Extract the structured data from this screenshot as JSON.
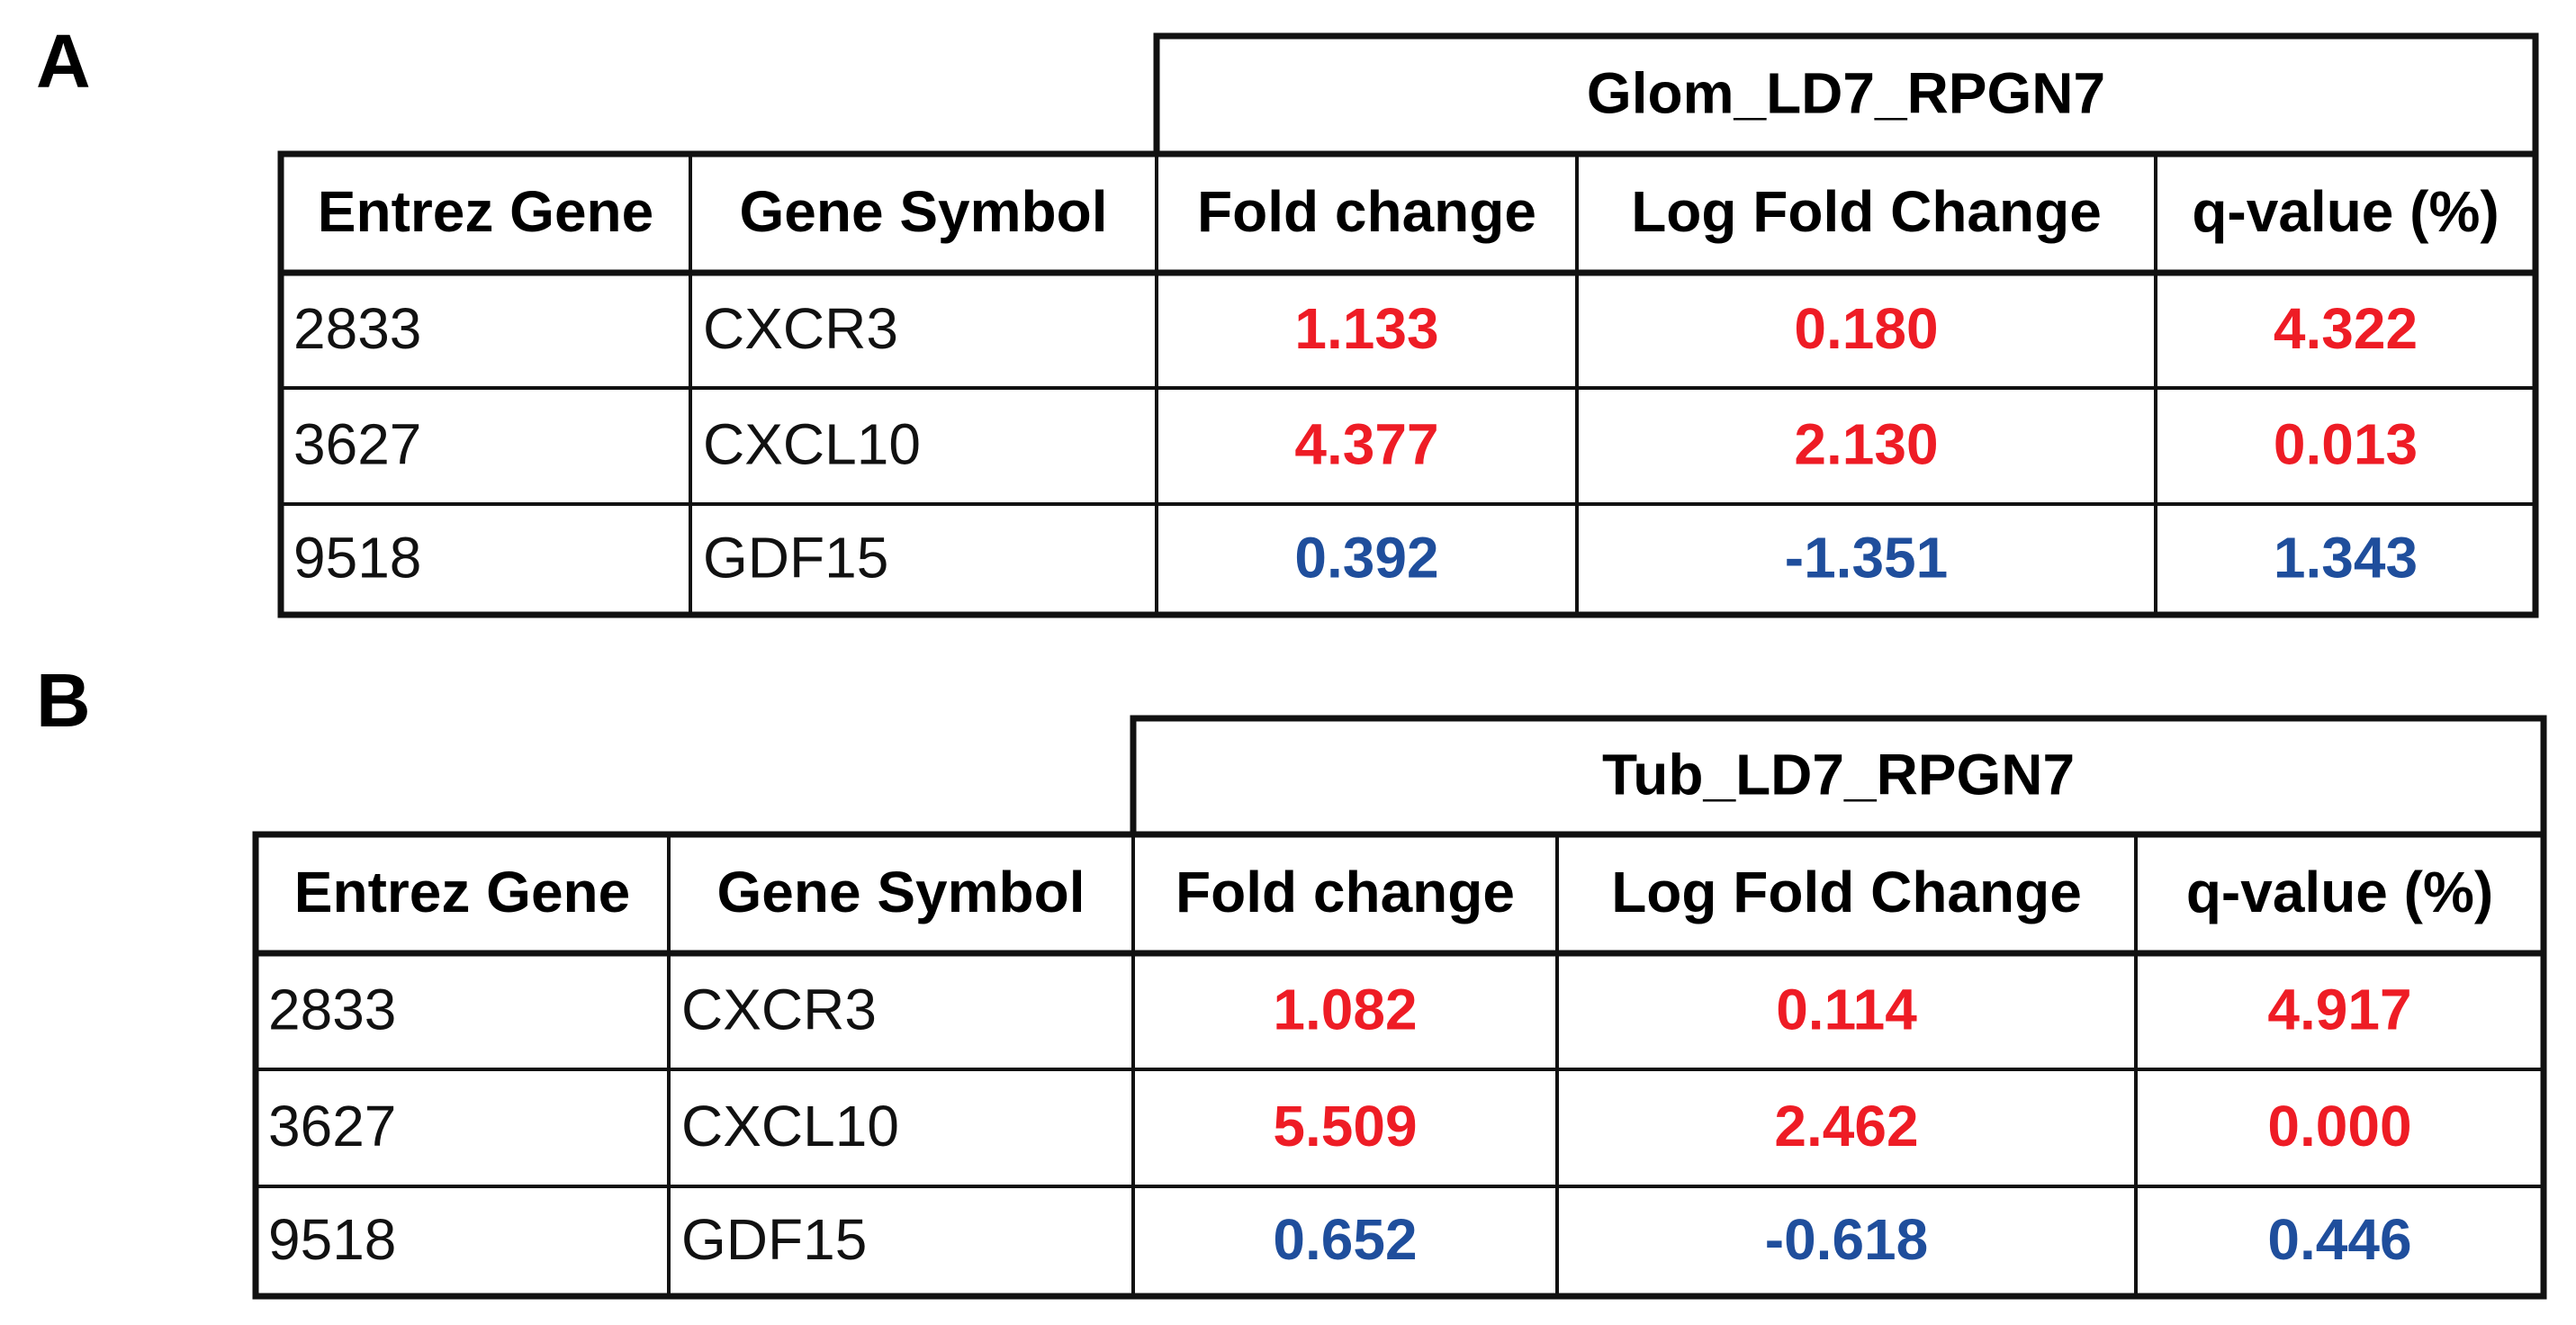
{
  "panels": [
    {
      "label": "A",
      "group_header": "Glom_LD7_RPGN7",
      "headers": [
        "Entrez Gene",
        "Gene Symbol",
        "Fold change",
        "Log Fold Change",
        "q-value (%)"
      ],
      "rows": [
        [
          "2833",
          "CXCR3",
          "1.133",
          "0.180",
          "4.322"
        ],
        [
          "3627",
          "CXCL10",
          "4.377",
          "2.130",
          "0.013"
        ],
        [
          "9518",
          "GDF15",
          "0.392",
          "-1.351",
          "1.343"
        ]
      ],
      "row_colors": [
        "#ee1c25",
        "#ee1c25",
        "#1f4e9c"
      ]
    },
    {
      "label": "B",
      "group_header": "Tub_LD7_RPGN7",
      "headers": [
        "Entrez Gene",
        "Gene Symbol",
        "Fold change",
        "Log Fold Change",
        "q-value (%)"
      ],
      "rows": [
        [
          "2833",
          "CXCR3",
          "1.082",
          "0.114",
          "4.917"
        ],
        [
          "3627",
          "CXCL10",
          "5.509",
          "2.462",
          "0.000"
        ],
        [
          "9518",
          "GDF15",
          "0.652",
          "-0.618",
          "0.446"
        ]
      ],
      "row_colors": [
        "#ee1c25",
        "#ee1c25",
        "#1f4e9c"
      ]
    }
  ]
}
